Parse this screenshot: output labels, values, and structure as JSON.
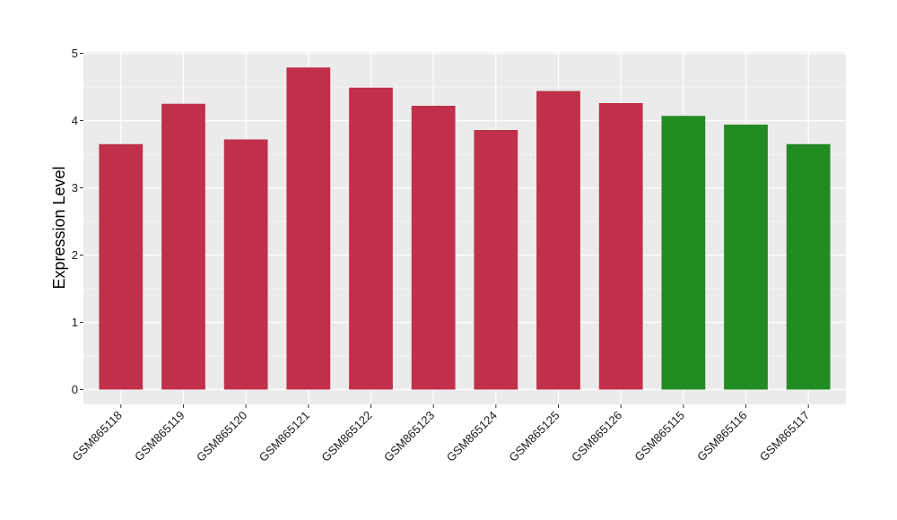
{
  "chart_data": {
    "type": "bar",
    "ylabel": "Expression Level",
    "xlabel": "",
    "ylim": [
      -0.22,
      5.02
    ],
    "yticks": [
      0,
      1,
      2,
      3,
      4,
      5
    ],
    "grid": true,
    "categories": [
      "GSM865118",
      "GSM865119",
      "GSM865120",
      "GSM865121",
      "GSM865122",
      "GSM865123",
      "GSM865124",
      "GSM865125",
      "GSM865126",
      "GSM865115",
      "GSM865116",
      "GSM865117"
    ],
    "values": [
      3.65,
      4.25,
      3.72,
      4.79,
      4.49,
      4.22,
      3.86,
      4.44,
      4.26,
      4.07,
      3.94,
      3.65
    ],
    "bar_colors": [
      "#c0304b",
      "#c0304b",
      "#c0304b",
      "#c0304b",
      "#c0304b",
      "#c0304b",
      "#c0304b",
      "#c0304b",
      "#c0304b",
      "#228b22",
      "#228b22",
      "#228b22"
    ],
    "panel_background": "#ebebeb",
    "gridline_color": "#ffffff"
  }
}
